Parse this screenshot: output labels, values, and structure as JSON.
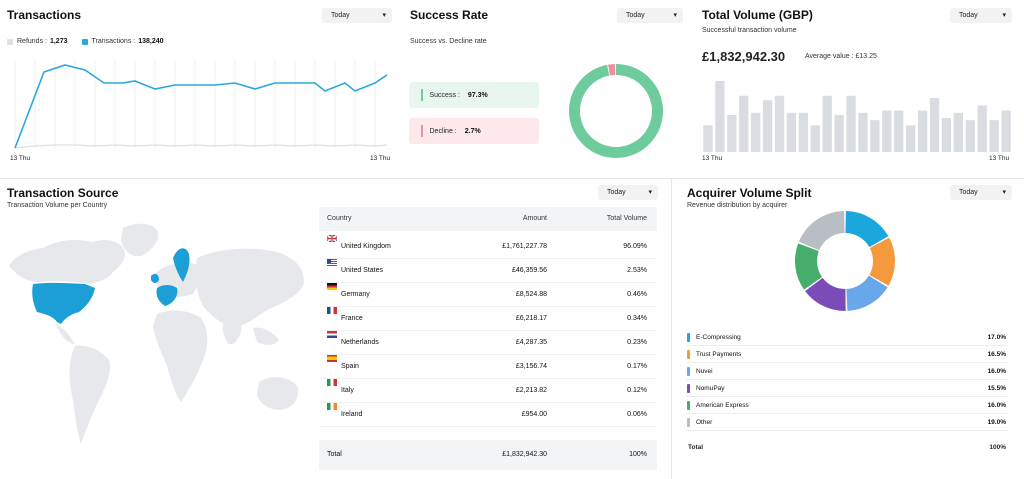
{
  "transactions": {
    "title": "Transactions",
    "range_selector": "Today",
    "legend": {
      "refunds_label": "Refunds :",
      "refunds_value": "1,273",
      "transactions_label": "Transactions :",
      "transactions_value": "138,240"
    },
    "x_start_label": "13 Thu",
    "x_end_label": "13 Thu",
    "colors": {
      "transactions": "#29a8e0",
      "refunds": "#dcdfe3"
    }
  },
  "success_rate": {
    "title": "Success Rate",
    "range_selector": "Today",
    "subtitle": "Success vs. Decline rate",
    "success_label": "Success :",
    "success_value": "97.3%",
    "decline_label": "Decline :",
    "decline_value": "2.7%",
    "success_fraction": 0.973,
    "colors": {
      "success": "#6ecb9b",
      "decline": "#ef8fa0"
    }
  },
  "total_volume": {
    "title": "Total Volume (GBP)",
    "range_selector": "Today",
    "subtitle": "Successful transaction volume",
    "value": "£1,832,942.30",
    "average_label": "Average value : £13.25",
    "x_start_label": "13 Thu",
    "x_end_label": "13 Thu",
    "bar_color": "#d9dde1"
  },
  "transaction_source": {
    "title": "Transaction Source",
    "range_selector": "Today",
    "subtitle": "Transaction Volume per Country",
    "columns": [
      "Country",
      "Amount",
      "Total Volume"
    ],
    "rows": [
      {
        "flag": "gb-flag-icon",
        "country": "United Kingdom",
        "amount": "£1,761,227.78",
        "volume": "96.09%"
      },
      {
        "flag": "us-flag-icon",
        "country": "United States",
        "amount": "£46,359.56",
        "volume": "2.53%"
      },
      {
        "flag": "de-flag-icon",
        "country": "Germany",
        "amount": "£8,524.88",
        "volume": "0.46%"
      },
      {
        "flag": "fr-flag-icon",
        "country": "France",
        "amount": "£6,218.17",
        "volume": "0.34%"
      },
      {
        "flag": "nl-flag-icon",
        "country": "Netherlands",
        "amount": "£4,287.35",
        "volume": "0.23%"
      },
      {
        "flag": "es-flag-icon",
        "country": "Spain",
        "amount": "£3,156.74",
        "volume": "0.17%"
      },
      {
        "flag": "it-flag-icon",
        "country": "Italy",
        "amount": "£2,213.82",
        "volume": "0.12%"
      },
      {
        "flag": "ie-flag-icon",
        "country": "Ireland",
        "amount": "£954.00",
        "volume": "0.06%"
      }
    ],
    "total_label": "Total",
    "total_amount": "£1,832,942.30",
    "total_volume": "100%",
    "map_colors": {
      "land": "#e6e8eb",
      "highlight": "#1b9fd6"
    }
  },
  "acquirer_split": {
    "title": "Acquirer Volume Split",
    "range_selector": "Today",
    "subtitle": "Revenue distribution by acquirer",
    "items": [
      {
        "name": "E-Compressing",
        "percent": "17.0%",
        "value": 17.0,
        "color": "#1ba7dc"
      },
      {
        "name": "Trust Payments",
        "percent": "16.5%",
        "value": 16.5,
        "color": "#f59a3c"
      },
      {
        "name": "Nuvei",
        "percent": "16.0%",
        "value": 16.0,
        "color": "#6aa6ea"
      },
      {
        "name": "NomuPay",
        "percent": "15.5%",
        "value": 15.5,
        "color": "#7b4bb7"
      },
      {
        "name": "American Express",
        "percent": "16.0%",
        "value": 16.0,
        "color": "#47ad6c"
      },
      {
        "name": "Other",
        "percent": "19.0%",
        "value": 19.0,
        "color": "#b9bec4"
      }
    ],
    "total_label": "Total",
    "total_percent": "100%"
  },
  "chevron_icon": "chevron-down-icon"
}
